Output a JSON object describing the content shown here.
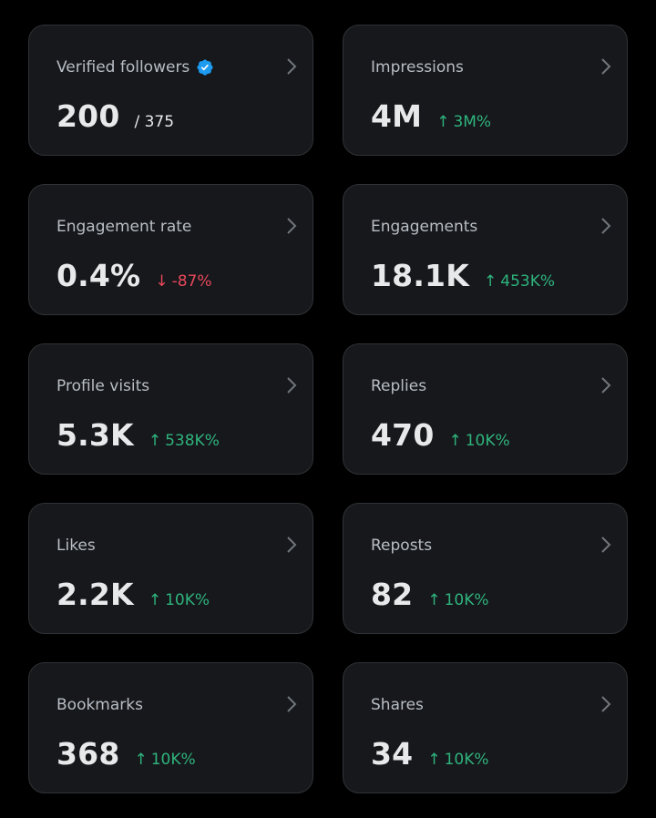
{
  "colors": {
    "background": "#000000",
    "card": "#16181c",
    "card_border": "#2f3336",
    "label": "#b9bec5",
    "value": "#e7e9ea",
    "positive": "#2fb37c",
    "negative": "#e8485a",
    "verified": "#1d9bf0"
  },
  "cards": [
    {
      "label": "Verified followers",
      "value": "200",
      "sub_value": "/ 375",
      "icon": "verified-badge-icon"
    },
    {
      "label": "Impressions",
      "value": "4M",
      "delta": "3M%",
      "direction": "up"
    },
    {
      "label": "Engagement rate",
      "value": "0.4%",
      "delta": "-87%",
      "direction": "down"
    },
    {
      "label": "Engagements",
      "value": "18.1K",
      "delta": "453K%",
      "direction": "up"
    },
    {
      "label": "Profile visits",
      "value": "5.3K",
      "delta": "538K%",
      "direction": "up"
    },
    {
      "label": "Replies",
      "value": "470",
      "delta": "10K%",
      "direction": "up"
    },
    {
      "label": "Likes",
      "value": "2.2K",
      "delta": "10K%",
      "direction": "up"
    },
    {
      "label": "Reposts",
      "value": "82",
      "delta": "10K%",
      "direction": "up"
    },
    {
      "label": "Bookmarks",
      "value": "368",
      "delta": "10K%",
      "direction": "up"
    },
    {
      "label": "Shares",
      "value": "34",
      "delta": "10K%",
      "direction": "up"
    }
  ],
  "arrows": {
    "up": "↑",
    "down": "↓"
  }
}
